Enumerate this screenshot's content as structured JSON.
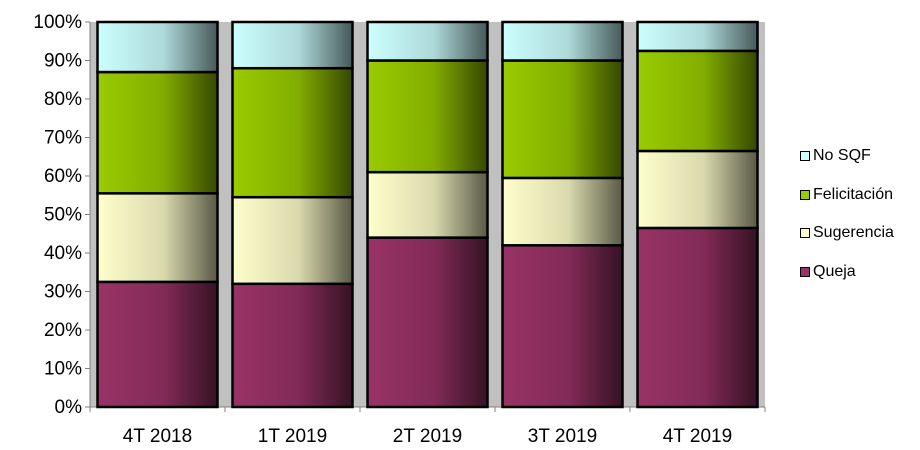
{
  "chart_data": {
    "type": "bar",
    "stacked": true,
    "percent": true,
    "title": "",
    "xlabel": "",
    "ylabel": "",
    "ylim": [
      0,
      100
    ],
    "yticks": [
      "0%",
      "10%",
      "20%",
      "30%",
      "40%",
      "50%",
      "60%",
      "70%",
      "80%",
      "90%",
      "100%"
    ],
    "categories": [
      "4T 2018",
      "1T 2019",
      "2T 2019",
      "3T 2019",
      "4T 2019"
    ],
    "series": [
      {
        "name": "Queja",
        "color": "#993366",
        "values": [
          32.5,
          32.0,
          44.0,
          42.0,
          46.5
        ]
      },
      {
        "name": "Sugerencia",
        "color": "#ffffcc",
        "values": [
          23.0,
          22.5,
          17.0,
          17.5,
          20.0
        ]
      },
      {
        "name": "Felicitación",
        "color": "#99cc00",
        "values": [
          31.5,
          33.5,
          29.0,
          30.5,
          26.0
        ]
      },
      {
        "name": "No SQF",
        "color": "#ccffff",
        "values": [
          13.0,
          12.0,
          10.0,
          10.0,
          7.5
        ]
      }
    ],
    "legend_position": "right",
    "legend_order": [
      "No SQF",
      "Felicitación",
      "Sugerencia",
      "Queja"
    ],
    "grid": false,
    "plot_background": "#c0c0c0"
  }
}
